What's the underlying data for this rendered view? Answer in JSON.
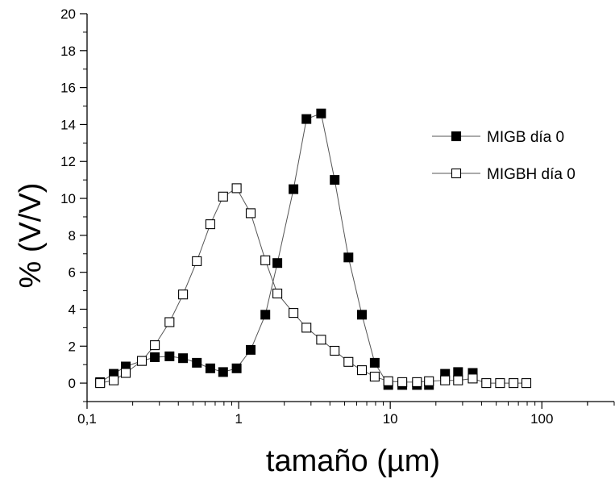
{
  "chart_data": {
    "type": "scatter",
    "title": "",
    "xlabel": "tamaño (µm)",
    "ylabel": "% (V/V)",
    "xscale": "log",
    "xlim": [
      0.1,
      300
    ],
    "ylim": [
      -1,
      20
    ],
    "grid": false,
    "legend_position": "top-right",
    "x_tick_labels": [
      "0,1",
      "1",
      "10",
      "100"
    ],
    "y_tick_labels": [
      "0",
      "2",
      "4",
      "6",
      "8",
      "10",
      "12",
      "14",
      "16",
      "18",
      "20"
    ],
    "series": [
      {
        "name": "MIGB día 0",
        "marker": "filled-square",
        "color": "#000000",
        "x": [
          0.122,
          0.15,
          0.18,
          0.23,
          0.28,
          0.35,
          0.43,
          0.53,
          0.65,
          0.79,
          0.97,
          1.2,
          1.5,
          1.8,
          2.3,
          2.8,
          3.5,
          4.3,
          5.3,
          6.5,
          7.9,
          9.7,
          12,
          15,
          18,
          23,
          28,
          35
        ],
        "y": [
          0.05,
          0.5,
          0.9,
          1.2,
          1.4,
          1.45,
          1.35,
          1.1,
          0.8,
          0.6,
          0.8,
          1.8,
          3.7,
          6.5,
          10.5,
          14.3,
          14.6,
          11.0,
          6.8,
          3.7,
          1.1,
          -0.1,
          -0.1,
          -0.1,
          -0.1,
          0.5,
          0.6,
          0.55
        ],
        "line_end_index": 21
      },
      {
        "name": "MIGBH día 0",
        "marker": "open-square",
        "color": "#000000",
        "x": [
          0.122,
          0.15,
          0.18,
          0.23,
          0.28,
          0.35,
          0.43,
          0.53,
          0.65,
          0.79,
          0.97,
          1.2,
          1.5,
          1.8,
          2.3,
          2.8,
          3.5,
          4.3,
          5.3,
          6.5,
          7.9,
          9.7,
          12,
          15,
          18,
          23,
          28,
          35,
          43,
          53,
          65,
          79
        ],
        "y": [
          0.0,
          0.15,
          0.55,
          1.2,
          2.05,
          3.3,
          4.8,
          6.6,
          8.6,
          10.1,
          10.55,
          9.2,
          6.65,
          4.85,
          3.8,
          3.0,
          2.35,
          1.75,
          1.15,
          0.7,
          0.35,
          0.1,
          0.05,
          0.05,
          0.1,
          0.15,
          0.15,
          0.25,
          0.0,
          0.0,
          0.0,
          0.0
        ],
        "line_end_index": 31
      }
    ]
  }
}
